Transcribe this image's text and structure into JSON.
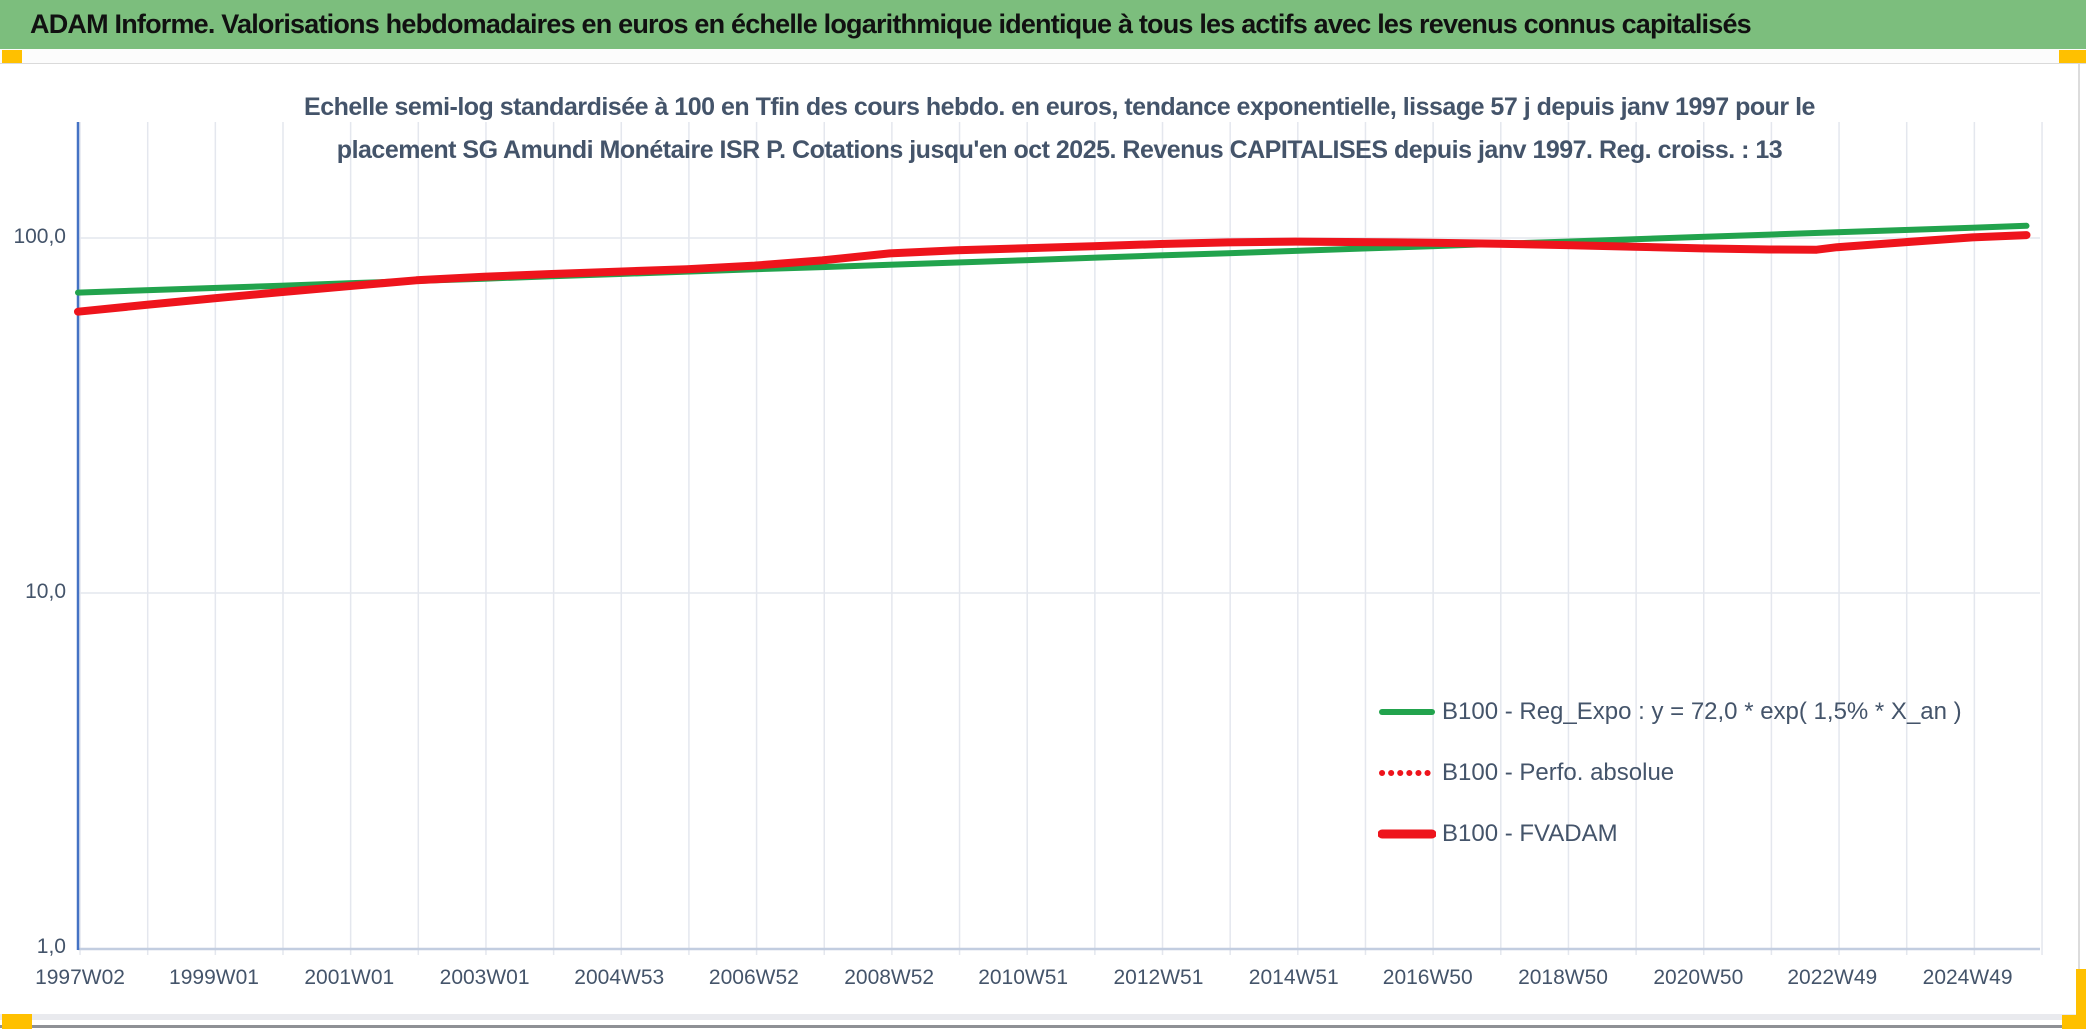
{
  "header": {
    "title": "ADAM Informe. Valorisations hebdomadaires en euros en échelle logarithmique identique à tous les actifs avec les revenus connus capitalisés"
  },
  "colors": {
    "header_bg": "#7cbe7d",
    "accent_orange": "#ffc000",
    "green_line": "#22a34d",
    "red_line": "#ee141c",
    "text_dark": "#44546a",
    "gridline": "#e4e7ee",
    "y_axis_line": "#4472c4",
    "x_axis_line": "#c2cde0"
  },
  "chart_data": {
    "type": "line",
    "title_lines": [
      "Echelle semi-log standardisée à 100 en Tfin des cours hebdo. en euros, tendance exponentielle, lissage 57 j depuis janv 1997 pour le",
      "placement SG Amundi Monétaire ISR P. Cotations jusqu'en oct 2025. Revenus CAPITALISES depuis janv 1997. Reg. croiss. : 13"
    ],
    "y_scale": "log10",
    "x_domain": [
      1997.0,
      2026.0
    ],
    "ylim": [
      1,
      212
    ],
    "grid": {
      "vertical_year_start": 1997.03,
      "vertical_year_step": 1,
      "vertical_count": 30
    },
    "y_ticks": [
      {
        "label": "100,0",
        "value": 100
      },
      {
        "label": "10,0",
        "value": 10
      },
      {
        "label": "1,0",
        "value": 1
      }
    ],
    "x_ticks": [
      {
        "label": "1997W02",
        "year": 1997.03
      },
      {
        "label": "1999W01",
        "year": 1999.01
      },
      {
        "label": "2001W01",
        "year": 2001.01
      },
      {
        "label": "2003W01",
        "year": 2003.01
      },
      {
        "label": "2004W53",
        "year": 2005.0
      },
      {
        "label": "2006W52",
        "year": 2006.99
      },
      {
        "label": "2008W52",
        "year": 2008.99
      },
      {
        "label": "2010W51",
        "year": 2010.97
      },
      {
        "label": "2012W51",
        "year": 2012.97
      },
      {
        "label": "2014W51",
        "year": 2014.97
      },
      {
        "label": "2016W50",
        "year": 2016.95
      },
      {
        "label": "2018W50",
        "year": 2018.95
      },
      {
        "label": "2020W50",
        "year": 2020.95
      },
      {
        "label": "2022W49",
        "year": 2022.93
      },
      {
        "label": "2024W49",
        "year": 2024.93
      }
    ],
    "series": [
      {
        "name": "B100 - Reg_Expo : y = 72,0 * exp( 1,5% * X_an )",
        "color": "#22a34d",
        "style": "solid",
        "width": 6,
        "points": [
          [
            1997,
            70.2
          ],
          [
            1998,
            71.3
          ],
          [
            1999,
            72.3
          ],
          [
            2000,
            73.4
          ],
          [
            2001,
            74.6
          ],
          [
            2002,
            75.7
          ],
          [
            2003,
            76.8
          ],
          [
            2004,
            78.0
          ],
          [
            2005,
            79.2
          ],
          [
            2006,
            80.4
          ],
          [
            2007,
            81.6
          ],
          [
            2008,
            82.8
          ],
          [
            2009,
            84.1
          ],
          [
            2010,
            85.3
          ],
          [
            2011,
            86.6
          ],
          [
            2012,
            88.0
          ],
          [
            2013,
            89.3
          ],
          [
            2014,
            90.6
          ],
          [
            2015,
            92.0
          ],
          [
            2016,
            93.4
          ],
          [
            2017,
            94.8
          ],
          [
            2018,
            96.3
          ],
          [
            2019,
            97.7
          ],
          [
            2020,
            99.2
          ],
          [
            2021,
            100.7
          ],
          [
            2022,
            102.2
          ],
          [
            2023,
            103.8
          ],
          [
            2024,
            105.3
          ],
          [
            2025,
            106.9
          ],
          [
            2025.8,
            108.2
          ]
        ]
      },
      {
        "name": "B100 - Perfo. absolue",
        "color": "#ee141c",
        "style": "dotted",
        "width": 5,
        "points": [
          [
            1997,
            62.0
          ],
          [
            1998,
            64.8
          ],
          [
            1999,
            67.6
          ],
          [
            2000,
            70.4
          ],
          [
            2001,
            73.2
          ],
          [
            2002,
            76.0
          ],
          [
            2003,
            77.8
          ],
          [
            2004,
            79.2
          ],
          [
            2005,
            80.4
          ],
          [
            2006,
            81.6
          ],
          [
            2007,
            83.6
          ],
          [
            2008,
            86.5
          ],
          [
            2009,
            90.5
          ],
          [
            2010,
            92.4
          ],
          [
            2011,
            93.6
          ],
          [
            2012,
            94.8
          ],
          [
            2013,
            96.2
          ],
          [
            2014,
            97.2
          ],
          [
            2015,
            97.7
          ],
          [
            2016,
            97.4
          ],
          [
            2017,
            97.0
          ],
          [
            2018,
            96.4
          ],
          [
            2019,
            95.5
          ],
          [
            2020,
            94.5
          ],
          [
            2021,
            93.5
          ],
          [
            2022,
            92.8
          ],
          [
            2022.7,
            92.7
          ],
          [
            2023,
            94.2
          ],
          [
            2024,
            97.3
          ],
          [
            2025,
            100.4
          ],
          [
            2025.8,
            101.9
          ]
        ]
      },
      {
        "name": "B100 - FVADAM",
        "color": "#ee141c",
        "style": "solid",
        "width": 8,
        "points": [
          [
            1997,
            62.0
          ],
          [
            1998,
            64.8
          ],
          [
            1999,
            67.6
          ],
          [
            2000,
            70.4
          ],
          [
            2001,
            73.2
          ],
          [
            2002,
            76.0
          ],
          [
            2003,
            77.8
          ],
          [
            2004,
            79.2
          ],
          [
            2005,
            80.4
          ],
          [
            2006,
            81.6
          ],
          [
            2007,
            83.6
          ],
          [
            2008,
            86.5
          ],
          [
            2009,
            90.5
          ],
          [
            2010,
            92.4
          ],
          [
            2011,
            93.6
          ],
          [
            2012,
            94.8
          ],
          [
            2013,
            96.2
          ],
          [
            2014,
            97.2
          ],
          [
            2015,
            97.7
          ],
          [
            2016,
            97.4
          ],
          [
            2017,
            97.0
          ],
          [
            2018,
            96.4
          ],
          [
            2019,
            95.5
          ],
          [
            2020,
            94.5
          ],
          [
            2021,
            93.5
          ],
          [
            2022,
            92.8
          ],
          [
            2022.7,
            92.7
          ],
          [
            2023,
            94.2
          ],
          [
            2024,
            97.3
          ],
          [
            2025,
            100.4
          ],
          [
            2025.8,
            101.9
          ]
        ]
      }
    ],
    "legend": {
      "position": "inside-right",
      "entries": [
        {
          "label": "B100 - Reg_Expo : y = 72,0 * exp( 1,5% * X_an )",
          "color": "#22a34d",
          "style": "solid",
          "swatch_width": 6
        },
        {
          "label": "B100 - Perfo. absolue",
          "color": "#ee141c",
          "style": "dotted",
          "swatch_width": 6
        },
        {
          "label": "B100 - FVADAM",
          "color": "#ee141c",
          "style": "solid",
          "swatch_width": 9
        }
      ]
    }
  }
}
